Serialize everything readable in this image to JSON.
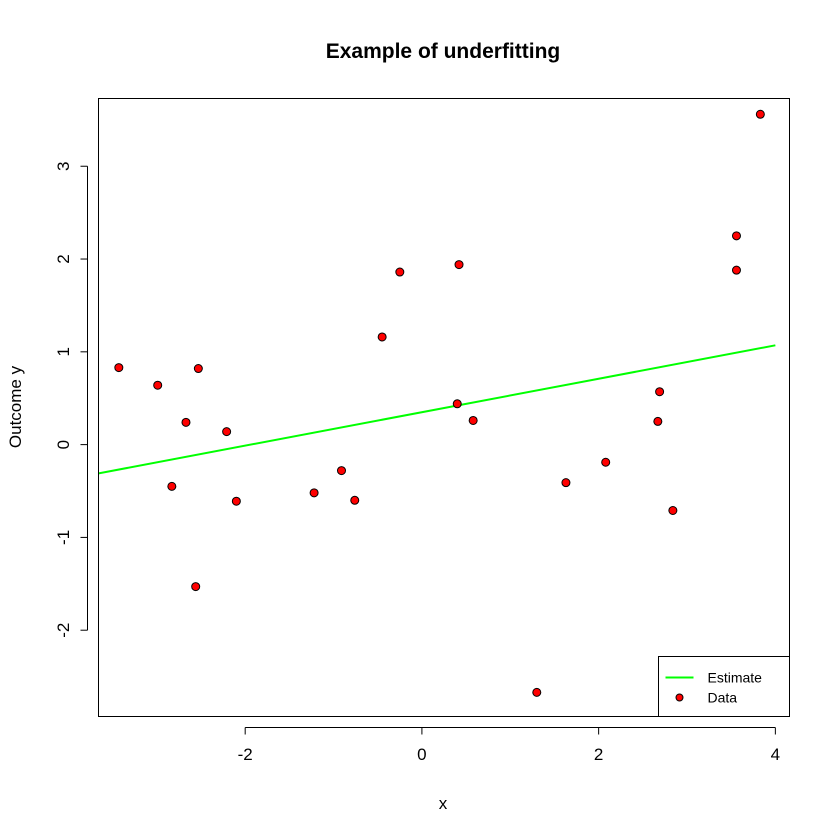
{
  "chart_data": {
    "type": "scatter",
    "title": "Example of underfitting",
    "xlabel": "x",
    "ylabel": "Outcome y",
    "xlim": [
      -3.66,
      4.16
    ],
    "ylim": [
      -2.93,
      3.73
    ],
    "xticks": [
      -2,
      0,
      2,
      4
    ],
    "yticks": [
      -2,
      -1,
      0,
      1,
      2,
      3
    ],
    "grid": false,
    "legend_position": "bottom-right",
    "colors": {
      "points": "#ff0000",
      "point_edge": "#000000",
      "line": "#00ff00"
    },
    "series": [
      {
        "name": "Data",
        "kind": "points",
        "x": [
          -3.43,
          -2.99,
          -2.83,
          -2.67,
          -2.56,
          -2.53,
          -2.21,
          -2.1,
          -1.22,
          -0.91,
          -0.76,
          -0.45,
          -0.25,
          0.4,
          0.42,
          0.58,
          1.3,
          1.63,
          2.08,
          2.67,
          2.69,
          2.84,
          3.56,
          3.56,
          3.83
        ],
        "y": [
          0.83,
          0.64,
          -0.45,
          0.24,
          -1.53,
          0.82,
          0.14,
          -0.61,
          -0.52,
          -0.28,
          -0.6,
          1.16,
          1.86,
          0.44,
          1.94,
          0.26,
          -2.67,
          -0.41,
          -0.19,
          0.25,
          0.57,
          -0.71,
          1.88,
          2.25,
          3.56
        ]
      },
      {
        "name": "Estimate",
        "kind": "line",
        "x": [
          -3.66,
          4.0
        ],
        "y": [
          -0.31,
          1.07
        ]
      }
    ],
    "legend": [
      {
        "label": "Estimate",
        "kind": "line"
      },
      {
        "label": "Data",
        "kind": "point"
      }
    ]
  }
}
